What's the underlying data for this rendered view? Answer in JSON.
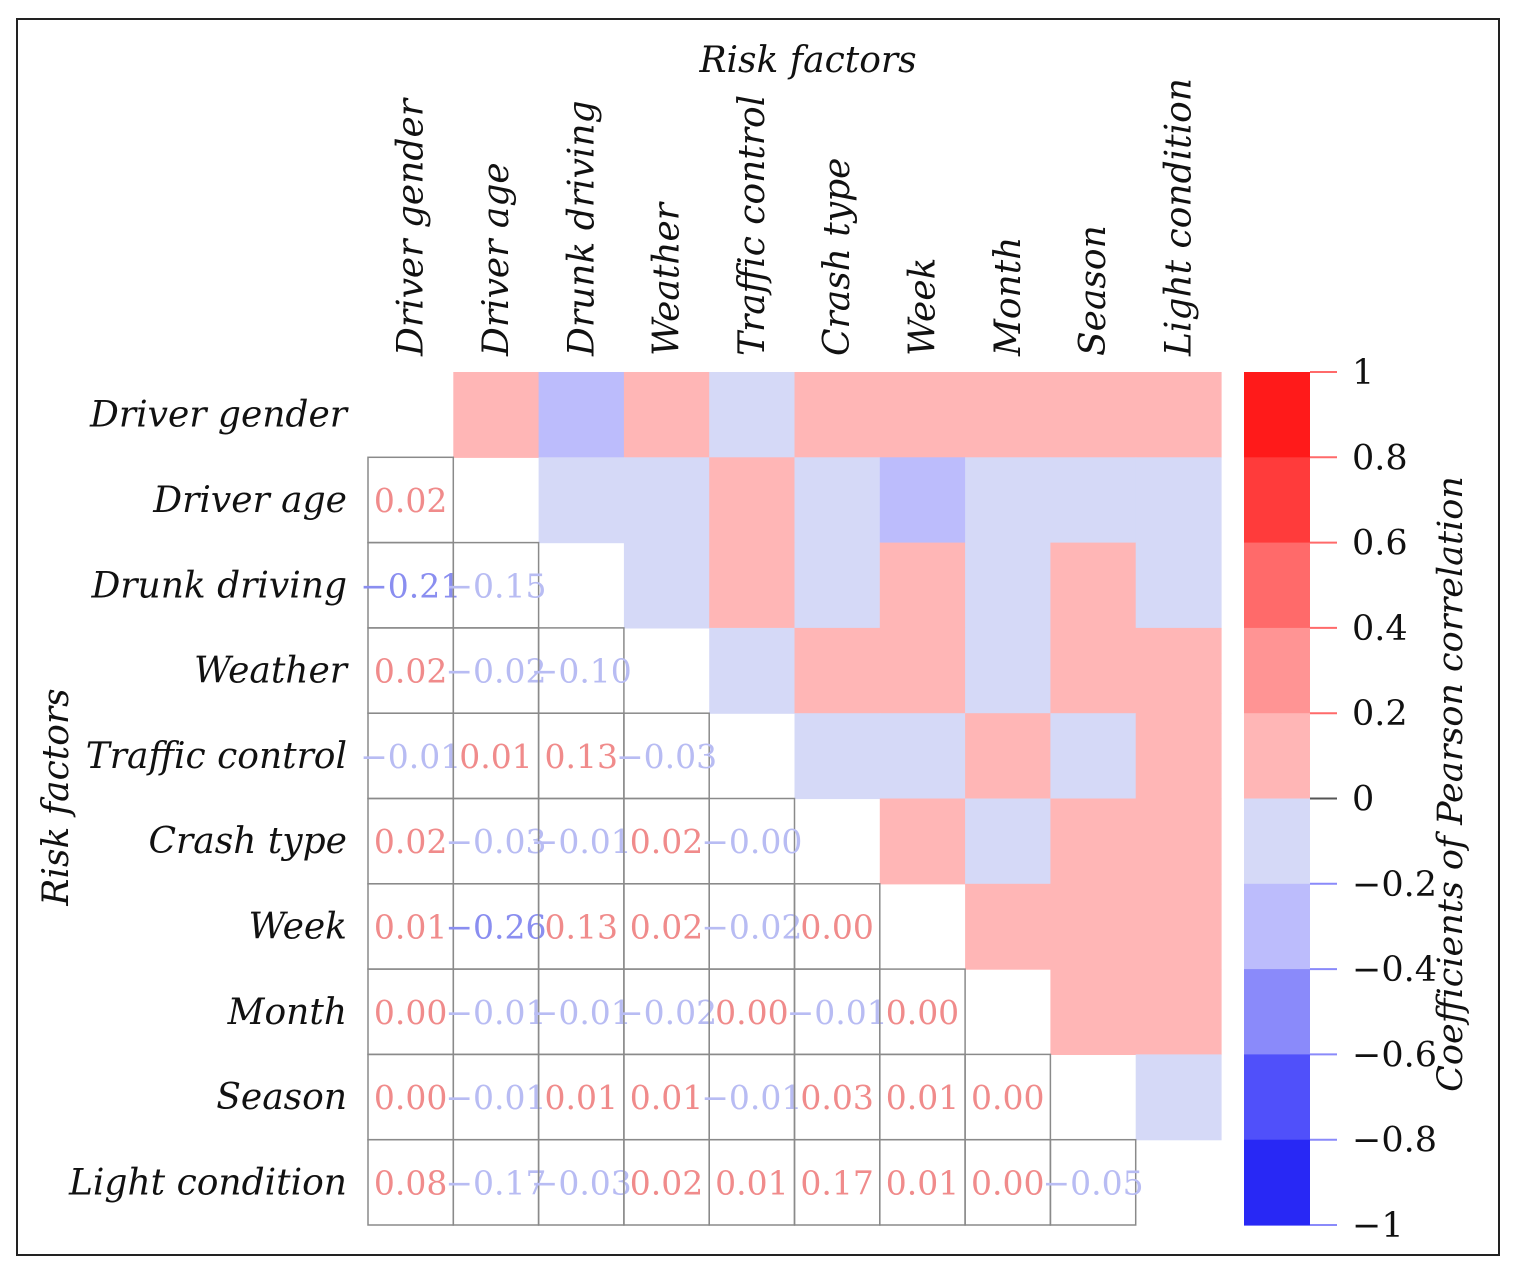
{
  "chart_data": {
    "type": "heatmap",
    "title": "Risk factors",
    "xlabel": "Risk factors",
    "ylabel": "Risk factors",
    "colorbar_label": "Coefficients of Pearson correlation",
    "colorbar_ticks": [
      "1",
      "0.8",
      "0.6",
      "0.4",
      "0.2",
      "0",
      "−0.2",
      "−0.4",
      "−0.6",
      "−0.8",
      "−1"
    ],
    "colorbar_bins": [
      {
        "from": 0.8,
        "to": 1.0,
        "color": "#ff1a1a"
      },
      {
        "from": 0.6,
        "to": 0.8,
        "color": "#ff3b3b"
      },
      {
        "from": 0.4,
        "to": 0.6,
        "color": "#ff6a6a"
      },
      {
        "from": 0.2,
        "to": 0.4,
        "color": "#ff9494"
      },
      {
        "from": 0.0,
        "to": 0.2,
        "color": "#ffb6b6"
      },
      {
        "from": -0.2,
        "to": 0.0,
        "color": "#d5d9f7"
      },
      {
        "from": -0.4,
        "to": -0.2,
        "color": "#bcbcfc"
      },
      {
        "from": -0.6,
        "to": -0.4,
        "color": "#8a8afa"
      },
      {
        "from": -0.8,
        "to": -0.6,
        "color": "#5050fa"
      },
      {
        "from": -1.0,
        "to": -0.8,
        "color": "#2828f5"
      }
    ],
    "factors": [
      "Driver gender",
      "Driver age",
      "Drunk driving",
      "Weather",
      "Traffic control",
      "Crash type",
      "Week",
      "Month",
      "Season",
      "Light condition"
    ],
    "lower_triangle": [
      {
        "row": 1,
        "values": [
          "0.02"
        ]
      },
      {
        "row": 2,
        "values": [
          "−0.21",
          "−0.15"
        ]
      },
      {
        "row": 3,
        "values": [
          "0.02",
          "−0.02",
          "−0.10"
        ]
      },
      {
        "row": 4,
        "values": [
          "−0.01",
          "0.01",
          "0.13",
          "−0.03"
        ]
      },
      {
        "row": 5,
        "values": [
          "0.02",
          "−0.03",
          "−0.01",
          "0.02",
          "−0.00"
        ]
      },
      {
        "row": 6,
        "values": [
          "0.01",
          "−0.26",
          "0.13",
          "0.02",
          "−0.02",
          "0.00"
        ]
      },
      {
        "row": 7,
        "values": [
          "0.00",
          "−0.01",
          "−0.01",
          "−0.02",
          "0.00",
          "−0.01",
          "0.00"
        ]
      },
      {
        "row": 8,
        "values": [
          "0.00",
          "−0.01",
          "0.01",
          "0.01",
          "−0.01",
          "0.03",
          "0.01",
          "0.00"
        ]
      },
      {
        "row": 9,
        "values": [
          "0.08",
          "−0.17",
          "−0.03",
          "0.02",
          "0.01",
          "0.17",
          "0.01",
          "0.00",
          "−0.05"
        ]
      }
    ],
    "colors": {
      "pos_fill": "#ffb6b6",
      "neg_fill": "#d5d9f7",
      "neg_strong_fill": "#bcbcfc",
      "pos_text": "#f08b8b",
      "neg_text": "#b8bcf3",
      "neg_strong_text": "#8a8ef0",
      "grid": "#8a8a8a"
    }
  }
}
